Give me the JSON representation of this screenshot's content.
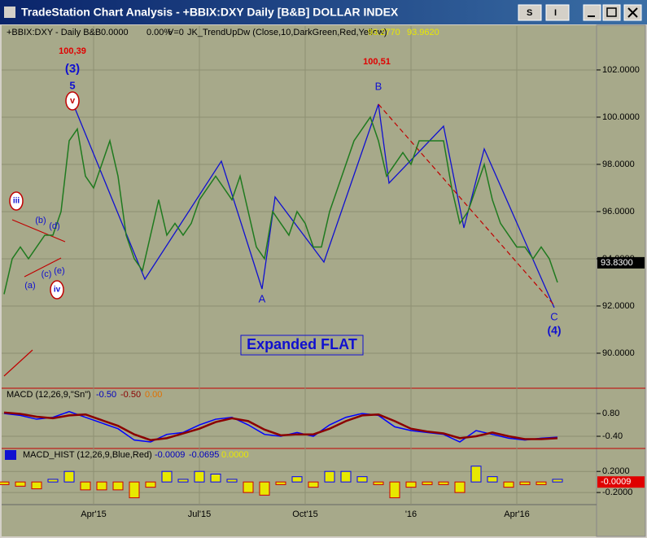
{
  "window": {
    "title": "TradeStation Chart Analysis - +BBIX:DXY Daily [B&B] DOLLAR INDEX",
    "buttons": [
      "S",
      "I"
    ]
  },
  "chart_data": [
    {
      "type": "line",
      "legend": [
        "+BBIX:DXY - Daily  B&B",
        "0.0000",
        "0.00%",
        "V=0",
        "JK_TrendUpDw (Close,10,DarkGreen,Red,Yellow)",
        "93.2770",
        "93.9620"
      ],
      "categories": [
        null,
        null,
        null,
        null,
        null,
        null,
        null,
        null,
        null,
        null,
        null,
        "Apr'15",
        null,
        null,
        null,
        null,
        null,
        null,
        null,
        null,
        null,
        null,
        null,
        null,
        "Jul'15",
        null,
        null,
        null,
        null,
        null,
        null,
        null,
        null,
        null,
        null,
        null,
        null,
        "Oct'15",
        null,
        null,
        null,
        null,
        null,
        null,
        null,
        null,
        null,
        null,
        null,
        null,
        "'16",
        null,
        null,
        null,
        null,
        null,
        null,
        null,
        null,
        null,
        null,
        null,
        null,
        "Apr'16",
        null,
        null,
        null,
        null,
        null
      ],
      "values": [
        92.5,
        94,
        94.5,
        94,
        94.5,
        95,
        95,
        96,
        99,
        99.5,
        97.5,
        97,
        98,
        99,
        97.5,
        95,
        94,
        93.5,
        95,
        96.5,
        95,
        95.5,
        95,
        95.5,
        96.5,
        97,
        97.5,
        97,
        96.5,
        97.5,
        96,
        94.5,
        94,
        96,
        95.5,
        95,
        96,
        95.5,
        94.5,
        94.5,
        96,
        97,
        98,
        99,
        99.5,
        100,
        99,
        97.5,
        98,
        98.5,
        98,
        99,
        99,
        99,
        99,
        97,
        95.5,
        96,
        97,
        98,
        96.5,
        95.5,
        95,
        94.5,
        94.5,
        94,
        94.5,
        94,
        93
      ],
      "color": "#1f7a1f",
      "ylim": [
        88.55,
        103.86
      ],
      "yticks": [
        {
          "value": 90,
          "label": "90.0000"
        },
        {
          "value": 92,
          "label": "92.0000"
        },
        {
          "value": 94,
          "label": "94.0000"
        },
        {
          "value": 96,
          "label": "96.0000"
        },
        {
          "value": 98,
          "label": "98.0000"
        },
        {
          "value": 100,
          "label": "100.0000"
        },
        {
          "value": 102,
          "label": "102.0000"
        }
      ],
      "last_value": {
        "value": 93.83,
        "label": "93.8300"
      },
      "annotations": [
        "100,39",
        "(3)",
        "5",
        "v",
        "100,51",
        "B",
        "A",
        "C",
        "(4)",
        "iii",
        "iv",
        "(a)",
        "(b)",
        "(c)",
        "(d)",
        "(e)",
        "Expanded FLAT"
      ]
    },
    {
      "type": "line",
      "legend": [
        "MACD (12,26,9,\"Sn\")",
        "-0.50",
        "-0.50",
        "0.00"
      ],
      "series": [
        {
          "color": "#0000ff",
          "values": [
            0.8,
            0.7,
            0.5,
            0.6,
            0.9,
            0.6,
            0.3,
            0.0,
            -0.6,
            -0.7,
            -0.3,
            -0.2,
            0.2,
            0.5,
            0.6,
            0.2,
            -0.3,
            -0.4,
            -0.2,
            -0.4,
            0.2,
            0.6,
            0.8,
            0.7,
            0.1,
            -0.1,
            -0.2,
            -0.3,
            -0.7,
            -0.1,
            -0.3,
            -0.5,
            -0.6,
            -0.5,
            -0.45
          ]
        },
        {
          "color": "#8b0000",
          "values": [
            0.85,
            0.78,
            0.63,
            0.55,
            0.7,
            0.75,
            0.45,
            0.15,
            -0.3,
            -0.6,
            -0.5,
            -0.25,
            0.0,
            0.35,
            0.55,
            0.4,
            -0.05,
            -0.35,
            -0.3,
            -0.3,
            0.0,
            0.4,
            0.7,
            0.75,
            0.4,
            0.0,
            -0.15,
            -0.25,
            -0.5,
            -0.4,
            -0.2,
            -0.4,
            -0.55,
            -0.55,
            -0.5
          ]
        }
      ],
      "ylim": [
        -1.0,
        2.09
      ],
      "yticks": [
        {
          "value": 0.8,
          "label": "0.80"
        },
        {
          "value": -0.4,
          "label": "-0.40"
        }
      ]
    },
    {
      "type": "bar",
      "legend": [
        "MACD_HIST (12,26,9,Blue,Red)",
        "-0.0009",
        "-0.0695",
        "0.0000"
      ],
      "values": [
        -0.05,
        -0.08,
        -0.13,
        0.05,
        0.2,
        -0.15,
        -0.15,
        -0.15,
        -0.3,
        -0.1,
        0.2,
        0.05,
        0.2,
        0.15,
        0.05,
        -0.2,
        -0.25,
        -0.05,
        0.1,
        -0.1,
        0.2,
        0.2,
        0.1,
        -0.05,
        -0.3,
        -0.1,
        -0.05,
        -0.05,
        -0.2,
        0.3,
        0.1,
        -0.1,
        -0.05,
        -0.05,
        0.05
      ],
      "color": "#0000ff",
      "negative_color": "#cc0000",
      "ylim": [
        -0.43,
        0.62
      ],
      "yticks": [
        {
          "value": 0.2,
          "label": "0.2000"
        },
        {
          "value": -0.2,
          "label": "-0.2000"
        }
      ],
      "last_value": {
        "value": -0.0009,
        "label": "-0.0009"
      }
    }
  ]
}
